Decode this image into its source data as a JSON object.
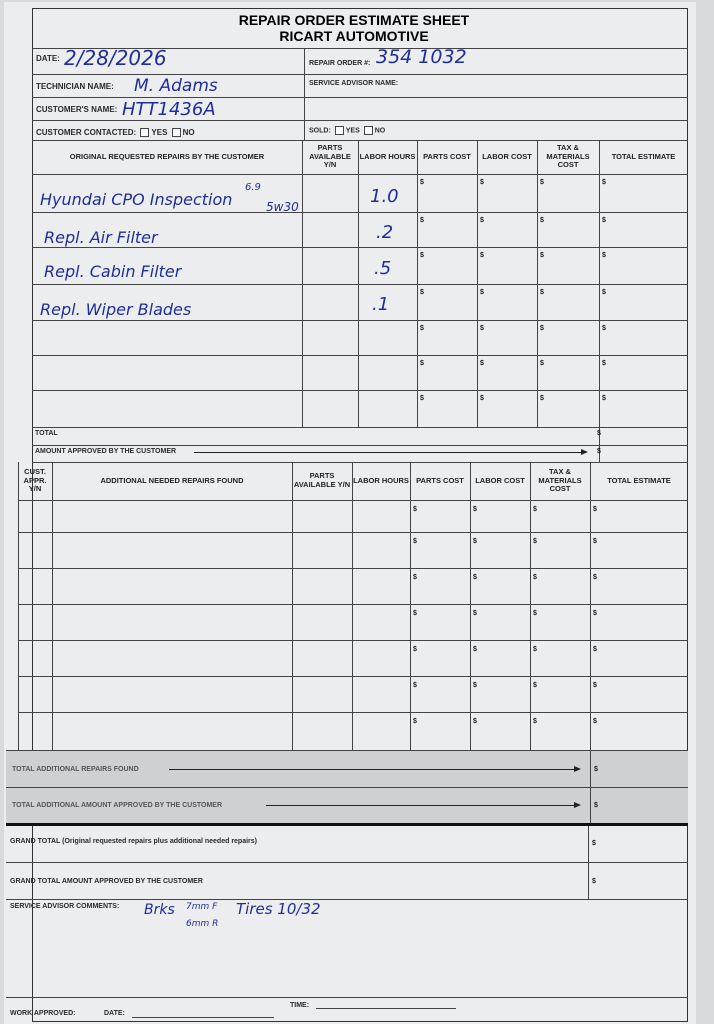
{
  "header": {
    "title_line1": "REPAIR ORDER ESTIMATE SHEET",
    "title_line2": "RICART AUTOMOTIVE"
  },
  "fields": {
    "date_label": "DATE:",
    "date_value": "2/28/2026",
    "technician_label": "TECHNICIAN NAME:",
    "technician_value": "M. Adams",
    "customer_label": "CUSTOMER'S NAME:",
    "customer_value": "HTT1436A",
    "contacted_label": "CUSTOMER CONTACTED:",
    "yes": "YES",
    "no": "NO",
    "repair_order_label": "REPAIR ORDER #:",
    "repair_order_value": "354 1032",
    "advisor_label": "SERVICE ADVISOR NAME:",
    "sold_label": "SOLD:"
  },
  "table1": {
    "headers": [
      "ORIGINAL REQUESTED REPAIRS BY THE CUSTOMER",
      "PARTS AVAILABLE Y/N",
      "LABOR HOURS",
      "PARTS COST",
      "LABOR COST",
      "TAX & MATERIALS COST",
      "TOTAL ESTIMATE"
    ],
    "rows": [
      {
        "repair": "Hyundai CPO Inspection",
        "note_top": "6.9",
        "note": "5w30",
        "hours": "1.0"
      },
      {
        "repair": "Repl. Air Filter",
        "hours": ".2"
      },
      {
        "repair": "Repl. Cabin Filter",
        "hours": ".5"
      },
      {
        "repair": "Repl. Wiper Blades",
        "hours": ".1"
      },
      {
        "repair": "",
        "hours": ""
      },
      {
        "repair": "",
        "hours": ""
      },
      {
        "repair": "",
        "hours": ""
      }
    ],
    "currency": "$",
    "total_label": "TOTAL",
    "approved_label": "AMOUNT APPROVED BY THE CUSTOMER"
  },
  "table2": {
    "headers": [
      "CUST. APPR. Y/N",
      "ADDITIONAL NEEDED REPAIRS FOUND",
      "PARTS AVAILABLE Y/N",
      "LABOR HOURS",
      "PARTS COST",
      "LABOR COST",
      "TAX & MATERIALS COST",
      "TOTAL ESTIMATE"
    ],
    "row_count": 7,
    "total_found_label": "TOTAL ADDITIONAL REPAIRS FOUND",
    "total_approved_label": "TOTAL ADDITIONAL AMOUNT APPROVED BY THE CUSTOMER"
  },
  "footer": {
    "grand_total_label": "GRAND TOTAL (Original requested repairs plus additional needed repairs)",
    "grand_approved_label": "GRAND TOTAL AMOUNT APPROVED BY THE CUSTOMER",
    "comments_label": "SERVICE ADVISOR COMMENTS:",
    "comment_brakes": "Brks",
    "comment_brakes_front": "7mm F",
    "comment_brakes_rear": "6mm R",
    "comment_tires": "Tires 10/32",
    "work_approved_label": "WORK APPROVED:",
    "date_label": "DATE:",
    "time_label": "TIME:"
  }
}
